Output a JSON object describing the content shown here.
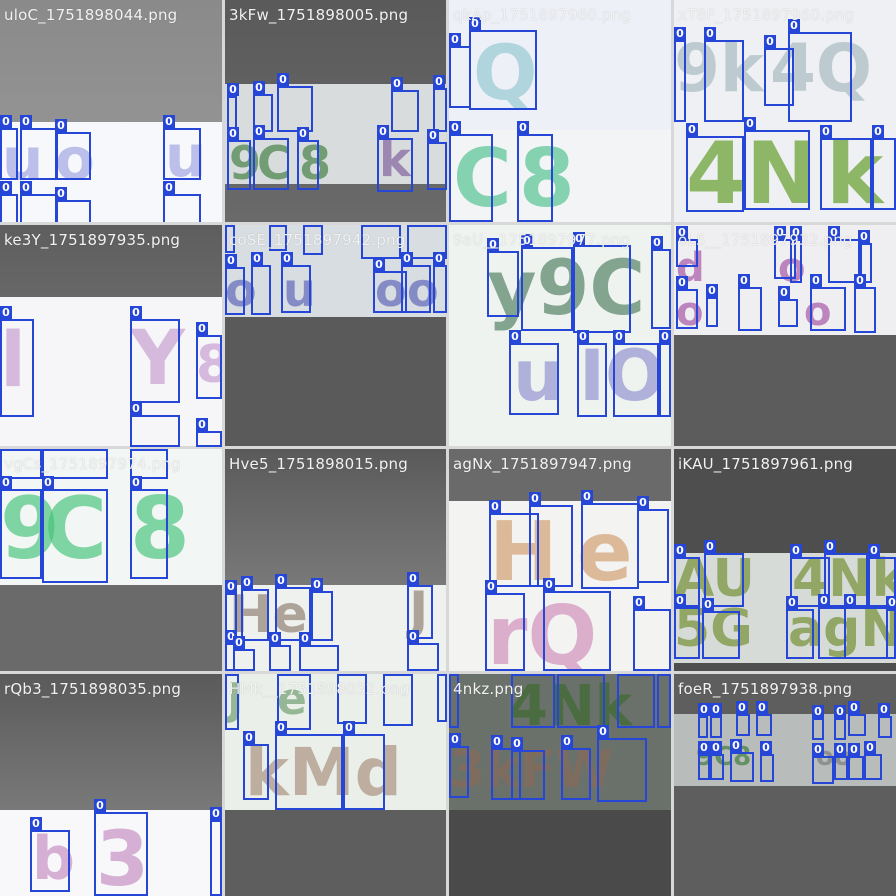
{
  "tiles": [
    {
      "title": "uloC_1751898044.png"
    },
    {
      "title": "3kFw_1751898005.png"
    },
    {
      "title": "qkAp_1751897960.png"
    },
    {
      "title": "xT8F_1751897960.png"
    },
    {
      "title": "ke3Y_1751897935.png"
    },
    {
      "title": "coSE_1751897942.png"
    },
    {
      "title": "9aU__1751897977.png"
    },
    {
      "title": "oL5__1751897932.png"
    },
    {
      "title": "vgCs_1751897974.png"
    },
    {
      "title": "Hve5_1751898015.png"
    },
    {
      "title": "agNx_1751897947.png"
    },
    {
      "title": "iKAU_1751897961.png"
    },
    {
      "title": "rQb3_1751898035.png"
    },
    {
      "title": "HMk__1751898032.png"
    },
    {
      "title": "4nkz.png"
    },
    {
      "title": "foeR_1751897938.png"
    }
  ],
  "label": "0",
  "colors": {
    "box": "#2546d6",
    "background": "#5f5f5f"
  }
}
